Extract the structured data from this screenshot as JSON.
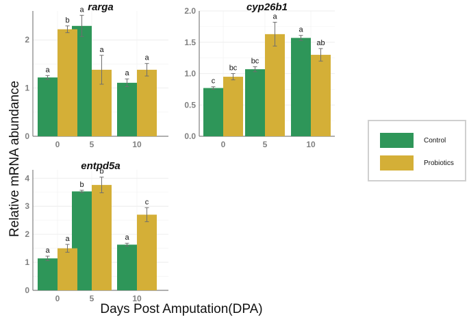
{
  "figure": {
    "y_axis_title": "Relative mRNA abundance",
    "x_axis_title": "Days Post Amputation(DPA)"
  },
  "legend": {
    "items": [
      {
        "label": "Control",
        "color": "#2e9659"
      },
      {
        "label": "Probiotics",
        "color": "#d4af37"
      }
    ]
  },
  "chart_data": [
    {
      "type": "bar",
      "title": "rarga",
      "categories": [
        "0",
        "5",
        "10"
      ],
      "ylim": [
        0,
        2.6
      ],
      "yticks": [
        0,
        1,
        2
      ],
      "grid": true,
      "series": [
        {
          "name": "Control",
          "values": [
            1.22,
            2.29,
            1.11
          ],
          "errors": [
            0.04,
            0.22,
            0.08
          ],
          "letters": [
            "a",
            "a",
            "a"
          ]
        },
        {
          "name": "Probiotics",
          "values": [
            2.22,
            1.38,
            1.38
          ],
          "errors": [
            0.07,
            0.3,
            0.13
          ],
          "letters": [
            "b",
            "a",
            "a"
          ]
        }
      ]
    },
    {
      "type": "bar",
      "title": "cyp26b1",
      "categories": [
        "0",
        "5",
        "10"
      ],
      "ylim": [
        0,
        2.0
      ],
      "yticks": [
        0,
        0.5,
        1.0,
        1.5,
        2.0
      ],
      "grid": true,
      "series": [
        {
          "name": "Control",
          "values": [
            0.77,
            1.07,
            1.57
          ],
          "errors": [
            0.02,
            0.04,
            0.04
          ],
          "letters": [
            "c",
            "bc",
            "a"
          ]
        },
        {
          "name": "Probiotics",
          "values": [
            0.95,
            1.63,
            1.3
          ],
          "errors": [
            0.05,
            0.19,
            0.1
          ],
          "letters": [
            "bc",
            "a",
            "ab"
          ]
        }
      ]
    },
    {
      "type": "bar",
      "title": "entpd5a",
      "categories": [
        "0",
        "5",
        "10"
      ],
      "ylim": [
        0,
        4.3
      ],
      "yticks": [
        0,
        1,
        2,
        3,
        4
      ],
      "grid": true,
      "series": [
        {
          "name": "Control",
          "values": [
            1.14,
            3.53,
            1.63
          ],
          "errors": [
            0.08,
            0.04,
            0.05
          ],
          "letters": [
            "a",
            "b",
            "a"
          ]
        },
        {
          "name": "Probiotics",
          "values": [
            1.5,
            3.76,
            2.7
          ],
          "errors": [
            0.14,
            0.28,
            0.25
          ],
          "letters": [
            "a",
            "b",
            "c"
          ]
        }
      ]
    }
  ]
}
